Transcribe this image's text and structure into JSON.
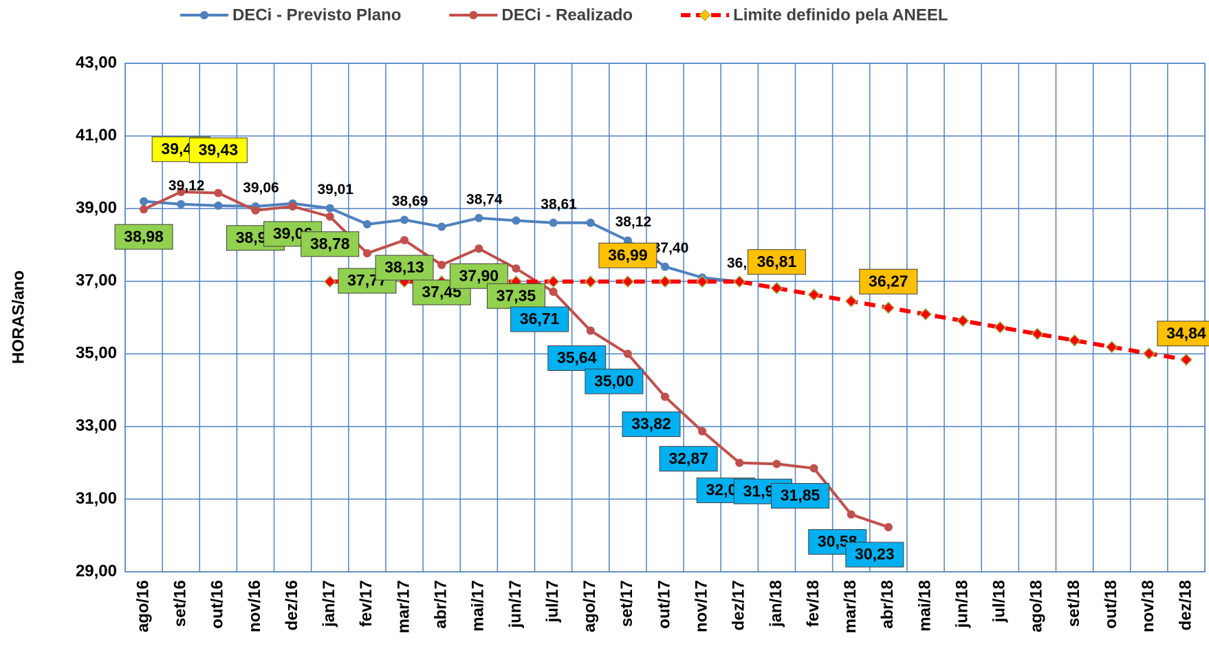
{
  "chart_data": {
    "type": "line",
    "y_label": "HORAS/ano",
    "categories": [
      "ago/16",
      "set/16",
      "out/16",
      "nov/16",
      "dez/16",
      "jan/17",
      "fev/17",
      "mar/17",
      "abr/17",
      "mai/17",
      "jun/17",
      "jul/17",
      "ago/17",
      "set/17",
      "out/17",
      "nov/17",
      "dez/17",
      "jan/18",
      "fev/18",
      "mar/18",
      "abr/18",
      "mai/18",
      "jun/18",
      "jul/18",
      "ago/18",
      "set/18",
      "out/18",
      "nov/18",
      "dez/18"
    ],
    "ylim": [
      29,
      43
    ],
    "yticks": [
      {
        "value": 29,
        "label": "29,00"
      },
      {
        "value": 31,
        "label": "31,00"
      },
      {
        "value": 33,
        "label": "33,00"
      },
      {
        "value": 35,
        "label": "35,00"
      },
      {
        "value": 37,
        "label": "37,00"
      },
      {
        "value": 39,
        "label": "39,00"
      },
      {
        "value": 41,
        "label": "41,00"
      },
      {
        "value": 43,
        "label": "43,00"
      }
    ],
    "grid": true,
    "legend": "top",
    "series": [
      {
        "name": "DECi - Previsto Plano",
        "color": "#4f81bd",
        "marker": "circle",
        "dashed": false,
        "values": [
          39.2,
          39.12,
          39.08,
          39.06,
          39.14,
          39.01,
          38.57,
          38.69,
          38.5,
          38.74,
          38.67,
          38.61,
          38.61,
          38.12,
          37.4,
          37.1,
          36.99,
          null,
          null,
          null,
          null,
          null,
          null,
          null,
          null,
          null,
          null,
          null,
          null
        ],
        "value_labels": [
          null,
          "39,12",
          null,
          "39,06",
          null,
          "39,01",
          null,
          "38,69",
          null,
          "38,74",
          null,
          "38,61",
          null,
          "38,12",
          "37,40",
          null,
          "36,99",
          null,
          null,
          null,
          null,
          null,
          null,
          null,
          null,
          null,
          null,
          null,
          null
        ]
      },
      {
        "name": "DECi - Realizado",
        "color": "#c0504d",
        "marker": "circle",
        "dashed": false,
        "values": [
          38.98,
          39.46,
          39.43,
          38.95,
          39.06,
          38.78,
          37.77,
          38.13,
          37.45,
          37.9,
          37.35,
          36.71,
          35.64,
          35.0,
          33.82,
          32.87,
          32.0,
          31.97,
          31.85,
          30.58,
          30.23,
          null,
          null,
          null,
          null,
          null,
          null,
          null,
          null
        ],
        "value_labels": [
          "38,98",
          "39,46",
          "39,43",
          "38,95",
          "39,06",
          "38,78",
          "37,77",
          "38,13",
          "37,45",
          "37,90",
          "37,35",
          "36,71",
          "35,64",
          "35,00",
          "33,82",
          "32,87",
          "32,00",
          "31,97",
          "31,85",
          "30,58",
          "30,23",
          null,
          null,
          null,
          null,
          null,
          null,
          null,
          null
        ],
        "label_colors": [
          "#92d050",
          "#ffff00",
          "#ffff00",
          "#92d050",
          "#92d050",
          "#92d050",
          "#92d050",
          "#92d050",
          "#92d050",
          "#92d050",
          "#92d050",
          "#00b0f0",
          "#00b0f0",
          "#00b0f0",
          "#00b0f0",
          "#00b0f0",
          "#00b0f0",
          "#00b0f0",
          "#00b0f0",
          "#00b0f0",
          "#00b0f0",
          null,
          null,
          null,
          null,
          null,
          null,
          null,
          null
        ]
      },
      {
        "name": "Limite definido pela ANEEL",
        "color": "#ff0000",
        "marker": "diamond",
        "dashed": true,
        "values": [
          null,
          null,
          null,
          null,
          null,
          36.99,
          36.99,
          36.99,
          36.99,
          36.99,
          36.99,
          36.99,
          36.99,
          36.99,
          36.99,
          36.99,
          36.99,
          36.81,
          36.63,
          36.45,
          36.27,
          36.09,
          35.91,
          35.73,
          35.55,
          35.37,
          35.19,
          35.01,
          34.84
        ],
        "value_labels": [
          null,
          null,
          null,
          null,
          null,
          null,
          null,
          null,
          null,
          null,
          null,
          null,
          null,
          "36,99",
          null,
          null,
          null,
          "36,81",
          null,
          null,
          "36,27",
          null,
          null,
          null,
          null,
          null,
          null,
          null,
          "34,84"
        ],
        "label_color": "#ffc000"
      }
    ]
  }
}
